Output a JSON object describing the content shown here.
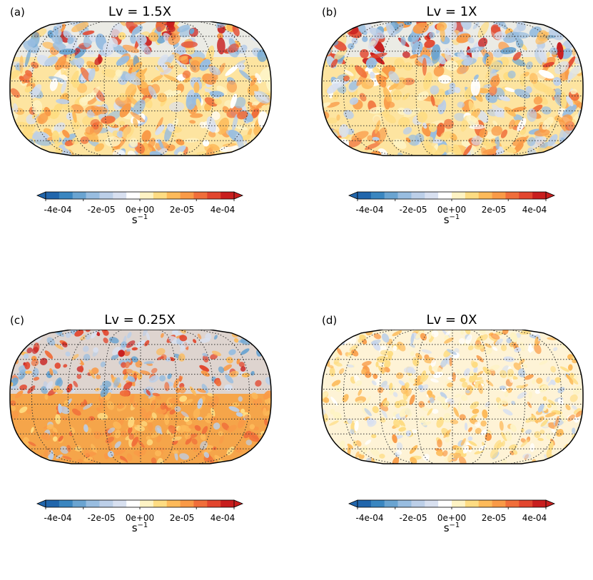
{
  "panels": [
    {
      "label": "(a)",
      "title": "Lv = 1.5X",
      "style": "mixed"
    },
    {
      "label": "(b)",
      "title": "Lv = 1X",
      "style": "mixed"
    },
    {
      "label": "(c)",
      "title": "Lv = 0.25X",
      "style": "strong"
    },
    {
      "label": "(d)",
      "title": "Lv = 0X",
      "style": "weak"
    }
  ],
  "colorbar": {
    "ticks": [
      "-4e-04",
      "-2e-05",
      "0e+00",
      "2e-05",
      "4e-04"
    ],
    "unit_base": "s",
    "unit_exp": "−1",
    "colors": [
      "#2166ac",
      "#3a86c0",
      "#6aa4d1",
      "#98bde0",
      "#bccfe8",
      "#d8e0f0",
      "#ffffff",
      "#fef3c4",
      "#fedc82",
      "#fdba5a",
      "#f99a47",
      "#f06e3a",
      "#e2462e",
      "#c81e1e"
    ]
  },
  "chart_data": [
    {
      "type": "heatmap",
      "title": "Lv = 1.5X",
      "label": "(a)",
      "colorbar_ticks": [
        "-4e-04",
        "-2e-05",
        "0e+00",
        "2e-05",
        "4e-04"
      ]
    },
    {
      "type": "heatmap",
      "title": "Lv = 1X",
      "label": "(b)",
      "colorbar_ticks": [
        "-4e-04",
        "-2e-05",
        "0e+00",
        "2e-05",
        "4e-04"
      ]
    },
    {
      "type": "heatmap",
      "title": "Lv = 0.25X",
      "label": "(c)",
      "colorbar_ticks": [
        "-4e-04",
        "-2e-05",
        "0e+00",
        "2e-05",
        "4e-04"
      ]
    },
    {
      "type": "heatmap",
      "title": "Lv = 0X",
      "label": "(d)",
      "colorbar_ticks": [
        "-4e-04",
        "-2e-05",
        "0e+00",
        "2e-05",
        "4e-04"
      ]
    }
  ]
}
